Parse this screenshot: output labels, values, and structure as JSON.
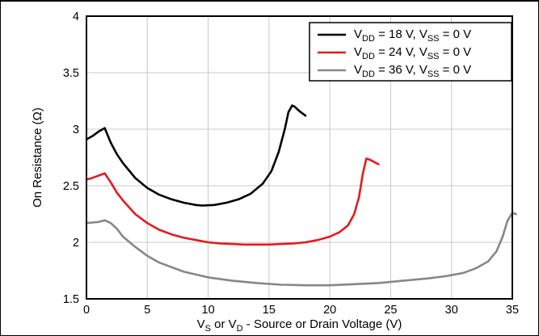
{
  "chart_data": {
    "type": "line",
    "title": "",
    "xlabel": {
      "parts": [
        {
          "text": "V",
          "sub": false
        },
        {
          "text": "S",
          "sub": true
        },
        {
          "text": " or V",
          "sub": false
        },
        {
          "text": "D",
          "sub": true
        },
        {
          "text": " - Source or Drain Voltage (V)",
          "sub": false
        }
      ]
    },
    "ylabel": "On Resistance (Ω)",
    "xlim": [
      0,
      35
    ],
    "ylim": [
      1.5,
      4
    ],
    "x_ticks": [
      "0",
      "5",
      "10",
      "15",
      "20",
      "25",
      "30",
      "35"
    ],
    "y_ticks": [
      "1.5",
      "2",
      "2.5",
      "3",
      "3.5",
      "4"
    ],
    "grid": true,
    "legend_position": "top-right",
    "series": [
      {
        "color": "#000000",
        "legend": [
          {
            "text": "V",
            "sub": false
          },
          {
            "text": "DD",
            "sub": true
          },
          {
            "text": " = 18 V, V",
            "sub": false
          },
          {
            "text": "SS",
            "sub": true
          },
          {
            "text": " = 0 V",
            "sub": false
          }
        ],
        "x": [
          0,
          0.5,
          1.0,
          1.5,
          2.0,
          2.5,
          3.0,
          4.0,
          5.0,
          6.0,
          7.0,
          8.0,
          9.0,
          9.5,
          10.5,
          11.5,
          12.5,
          13.5,
          14.5,
          15.2,
          15.8,
          16.3,
          16.6,
          16.9,
          17.1,
          17.5,
          18.0
        ],
        "y": [
          2.91,
          2.94,
          2.98,
          3.01,
          2.88,
          2.78,
          2.7,
          2.57,
          2.48,
          2.42,
          2.38,
          2.35,
          2.33,
          2.325,
          2.33,
          2.35,
          2.38,
          2.43,
          2.52,
          2.63,
          2.8,
          3.0,
          3.15,
          3.21,
          3.2,
          3.16,
          3.12
        ]
      },
      {
        "color": "#e8191c",
        "legend": [
          {
            "text": "V",
            "sub": false
          },
          {
            "text": "DD",
            "sub": true
          },
          {
            "text": " = 24 V, V",
            "sub": false
          },
          {
            "text": "SS",
            "sub": true
          },
          {
            "text": " = 0 V",
            "sub": false
          }
        ],
        "x": [
          0,
          0.5,
          1.0,
          1.5,
          2.0,
          2.5,
          3.0,
          4.0,
          5.0,
          6.0,
          7.0,
          8.0,
          9.0,
          10.0,
          11.0,
          12.0,
          13.0,
          14.0,
          15.0,
          16.0,
          17.0,
          18.0,
          19.0,
          20.0,
          20.8,
          21.5,
          22.0,
          22.4,
          22.7,
          23.0,
          23.3,
          24.0
        ],
        "y": [
          2.555,
          2.57,
          2.59,
          2.61,
          2.53,
          2.44,
          2.37,
          2.25,
          2.17,
          2.11,
          2.07,
          2.04,
          2.02,
          2.0,
          1.99,
          1.985,
          1.98,
          1.98,
          1.98,
          1.985,
          1.99,
          2.0,
          2.02,
          2.05,
          2.09,
          2.15,
          2.25,
          2.4,
          2.6,
          2.74,
          2.73,
          2.69
        ]
      },
      {
        "color": "#878787",
        "legend": [
          {
            "text": "V",
            "sub": false
          },
          {
            "text": "DD",
            "sub": true
          },
          {
            "text": " = 36 V, V",
            "sub": false
          },
          {
            "text": "SS",
            "sub": true
          },
          {
            "text": " = 0 V",
            "sub": false
          }
        ],
        "x": [
          0,
          0.5,
          1.0,
          1.5,
          2.0,
          2.5,
          3.0,
          4.0,
          5.0,
          6.0,
          7.0,
          8.0,
          10.0,
          12.0,
          14.0,
          16.0,
          18.0,
          20.0,
          22.0,
          24.0,
          26.0,
          28.0,
          29.5,
          31.0,
          32.0,
          33.0,
          33.7,
          34.2,
          34.6,
          35.0,
          35.3
        ],
        "y": [
          2.17,
          2.175,
          2.18,
          2.195,
          2.17,
          2.12,
          2.05,
          1.96,
          1.88,
          1.82,
          1.78,
          1.74,
          1.69,
          1.66,
          1.64,
          1.625,
          1.62,
          1.62,
          1.63,
          1.64,
          1.66,
          1.68,
          1.7,
          1.73,
          1.77,
          1.83,
          1.92,
          2.05,
          2.19,
          2.26,
          2.25
        ]
      }
    ]
  }
}
